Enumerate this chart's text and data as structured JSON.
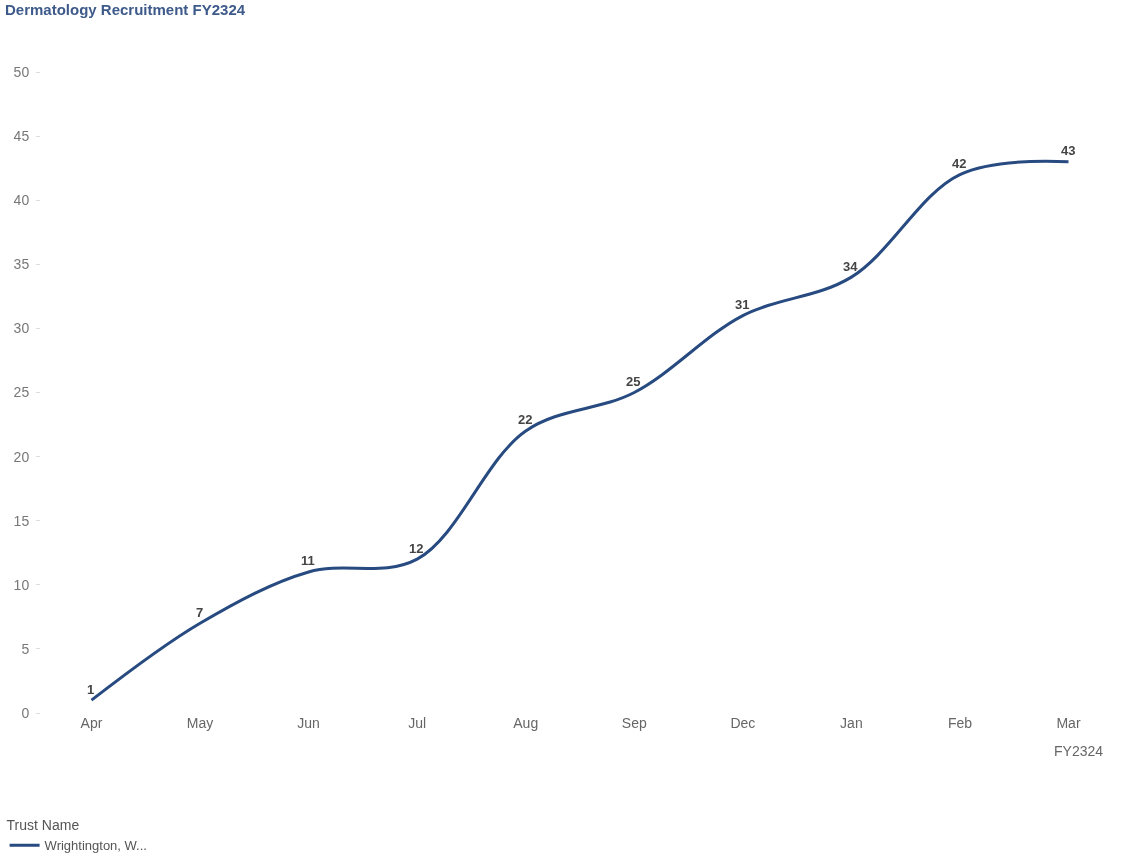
{
  "chart_data": {
    "type": "line",
    "title": "Dermatology Recruitment FY2324",
    "xlabel": "FY2324",
    "legend_title": "Trust Name",
    "categories": [
      "Apr",
      "May",
      "Jun",
      "Jul",
      "Aug",
      "Sep",
      "Dec",
      "Jan",
      "Feb",
      "Mar"
    ],
    "series": [
      {
        "name": "Wrightington, W...",
        "color": "#274a80",
        "values": [
          1,
          7,
          11,
          12,
          22,
          25,
          31,
          34,
          42,
          43
        ]
      }
    ],
    "ylim": [
      0,
      50
    ],
    "yticks": [
      0,
      5,
      10,
      15,
      20,
      25,
      30,
      35,
      40,
      45,
      50
    ],
    "legend": "bottom left",
    "data_labels": true,
    "marker": "none",
    "line_style": "solid"
  }
}
